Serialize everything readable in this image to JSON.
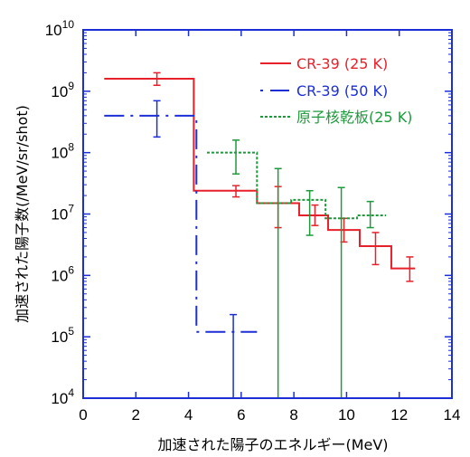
{
  "chart_data": {
    "type": "line",
    "xlabel": "加速された陽子のエネルギー(MeV)",
    "ylabel": "加速された陽子数(/MeV/sr/shot)",
    "xlim": [
      0,
      14
    ],
    "ylim": [
      10000,
      10000000000
    ],
    "y_scale": "log",
    "x_ticks": [
      0,
      2,
      4,
      6,
      8,
      10,
      12,
      14
    ],
    "y_ticks": [
      {
        "value": 10000,
        "base": "10",
        "exp": "4"
      },
      {
        "value": 100000,
        "base": "10",
        "exp": "5"
      },
      {
        "value": 1000000,
        "base": "10",
        "exp": "6"
      },
      {
        "value": 10000000,
        "base": "10",
        "exp": "7"
      },
      {
        "value": 100000000,
        "base": "10",
        "exp": "8"
      },
      {
        "value": 1000000000,
        "base": "10",
        "exp": "9"
      },
      {
        "value": 10000000000,
        "base": "10",
        "exp": "10"
      }
    ],
    "grid": false,
    "legend_position": "top-right",
    "series": [
      {
        "name": "CR-39 (25 K)",
        "color": "#e8202a",
        "style": "solid",
        "bins": [
          {
            "x0": 0.8,
            "x1": 4.2,
            "y": 1600000000
          },
          {
            "x0": 4.2,
            "x1": 6.6,
            "y": 24000000
          },
          {
            "x0": 6.6,
            "x1": 8.2,
            "y": 15000000
          },
          {
            "x0": 8.2,
            "x1": 9.3,
            "y": 9500000
          },
          {
            "x0": 9.3,
            "x1": 10.5,
            "y": 5500000
          },
          {
            "x0": 10.5,
            "x1": 11.7,
            "y": 3000000
          },
          {
            "x0": 11.7,
            "x1": 12.6,
            "y": 1300000
          }
        ],
        "errors": [
          {
            "x": 2.8,
            "y": 1600000000,
            "lo": 1250000000,
            "hi": 2000000000
          },
          {
            "x": 5.8,
            "y": 24000000,
            "lo": 19000000,
            "hi": 29000000
          },
          {
            "x": 7.4,
            "y": 14000000,
            "lo": 6000000,
            "hi": 28000000
          },
          {
            "x": 8.8,
            "y": 9500000,
            "lo": 6500000,
            "hi": 14000000
          },
          {
            "x": 9.9,
            "y": 5500000,
            "lo": 3500000,
            "hi": 8500000
          },
          {
            "x": 11.1,
            "y": 2800000,
            "lo": 1500000,
            "hi": 5000000
          },
          {
            "x": 12.4,
            "y": 1300000,
            "lo": 800000,
            "hi": 2000000
          }
        ]
      },
      {
        "name": "CR-39 (50 K)",
        "color": "#1c2fd6",
        "style": "dash-dot",
        "bins": [
          {
            "x0": 0.8,
            "x1": 4.3,
            "y": 400000000
          },
          {
            "x0": 4.3,
            "x1": 6.6,
            "y": 120000
          }
        ],
        "errors": [
          {
            "x": 2.8,
            "y": 380000000,
            "lo": 180000000,
            "hi": 700000000
          },
          {
            "x": 5.7,
            "y": 120000,
            "lo": 10000,
            "hi": 230000
          }
        ]
      },
      {
        "name": "原子核乾板(25 K)",
        "color": "#1e9a3c",
        "style": "dotted",
        "bins": [
          {
            "x0": 4.7,
            "x1": 6.6,
            "y": 100000000
          },
          {
            "x0": 6.6,
            "x1": 7.9,
            "y": 15000000
          },
          {
            "x0": 7.9,
            "x1": 9.2,
            "y": 17000000
          },
          {
            "x0": 9.2,
            "x1": 10.4,
            "y": 8500000
          },
          {
            "x0": 10.4,
            "x1": 11.5,
            "y": 9500000
          }
        ],
        "errors": [
          {
            "x": 5.8,
            "y": 100000000,
            "lo": 45000000,
            "hi": 160000000
          },
          {
            "x": 7.4,
            "y": 15000000,
            "lo": 10000,
            "hi": 55000000
          },
          {
            "x": 8.6,
            "y": 17000000,
            "lo": 4500000,
            "hi": 24000000
          },
          {
            "x": 9.8,
            "y": 8500000,
            "lo": 10000,
            "hi": 27000000
          },
          {
            "x": 10.9,
            "y": 9500000,
            "lo": 6000000,
            "hi": 16000000
          }
        ]
      }
    ]
  }
}
